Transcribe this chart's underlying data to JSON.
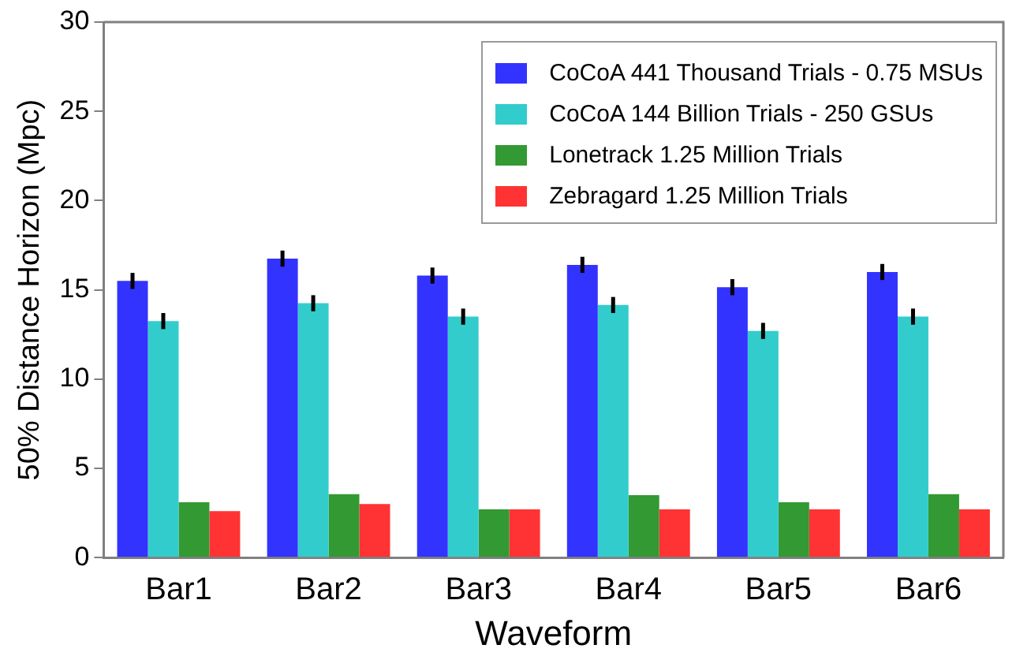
{
  "chart_data": {
    "type": "bar",
    "xlabel": "Waveform",
    "ylabel": "50% Distance Horizon (Mpc)",
    "categories": [
      "Bar1",
      "Bar2",
      "Bar3",
      "Bar4",
      "Bar5",
      "Bar6"
    ],
    "series": [
      {
        "name": "CoCoA 441 Thousand Trials - 0.75 MSUs",
        "color": "#3333ff",
        "values": [
          15.5,
          16.75,
          15.8,
          16.4,
          15.15,
          16.0
        ],
        "errors": [
          0.45,
          0.45,
          0.45,
          0.45,
          0.45,
          0.45
        ]
      },
      {
        "name": "CoCoA 144 Billion Trials - 250 GSUs",
        "color": "#33cccc",
        "values": [
          13.25,
          14.25,
          13.5,
          14.15,
          12.7,
          13.5
        ],
        "errors": [
          0.45,
          0.45,
          0.45,
          0.45,
          0.45,
          0.45
        ]
      },
      {
        "name": "Lonetrack 1.25 Million Trials",
        "color": "#339933",
        "values": [
          3.1,
          3.55,
          2.7,
          3.5,
          3.1,
          3.55
        ]
      },
      {
        "name": "Zebragard 1.25 Million Trials",
        "color": "#ff3333",
        "values": [
          2.6,
          3.0,
          2.7,
          2.7,
          2.7,
          2.7
        ]
      }
    ],
    "ylim": [
      0,
      30
    ],
    "yticks": [
      0,
      5,
      10,
      15,
      20,
      25,
      30
    ],
    "grid": false,
    "legend": "top right"
  }
}
